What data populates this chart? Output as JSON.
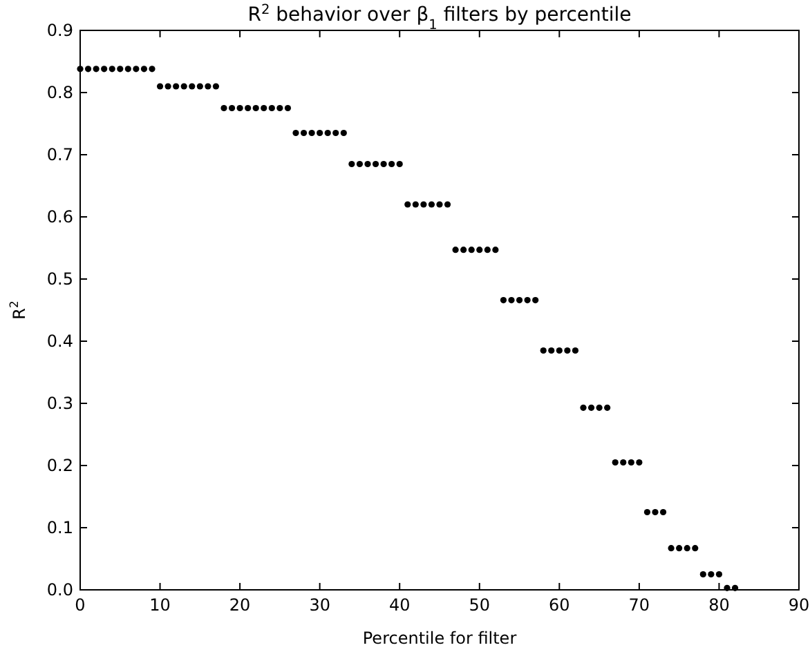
{
  "chart_data": {
    "type": "scatter",
    "title": "R$^{2}$ behavior over β$_{1}$ filters by percentile",
    "xlabel": "Percentile for filter",
    "ylabel": "R$^{2}$",
    "marker": "circle",
    "grid": false,
    "xlim": [
      0,
      90
    ],
    "xticks": [
      0,
      10,
      20,
      30,
      40,
      50,
      60,
      70,
      80,
      90
    ],
    "ylim": [
      0,
      0.9
    ],
    "yticks": [
      {
        "value": 0,
        "label": "0.0"
      },
      0.1,
      0.2,
      0.3,
      0.4,
      0.5,
      0.6,
      0.7,
      0.8,
      0.9
    ],
    "series": [
      {
        "color": "#000000",
        "x": [
          0,
          1,
          2,
          3,
          4,
          5,
          6,
          7,
          8,
          9,
          10,
          11,
          12,
          13,
          14,
          15,
          16,
          17,
          18,
          19,
          20,
          21,
          22,
          23,
          24,
          25,
          26,
          27,
          28,
          29,
          30,
          31,
          32,
          33,
          34,
          35,
          36,
          37,
          38,
          39,
          40,
          41,
          42,
          43,
          44,
          45,
          46,
          47,
          48,
          49,
          50,
          51,
          52,
          53,
          54,
          55,
          56,
          57,
          58,
          59,
          60,
          61,
          62,
          63,
          64,
          65,
          66,
          67,
          68,
          69,
          70,
          71,
          72,
          73,
          74,
          75,
          76,
          77,
          78,
          79,
          80,
          81,
          82
        ],
        "values": [
          0.838,
          0.838,
          0.838,
          0.838,
          0.838,
          0.838,
          0.838,
          0.838,
          0.838,
          0.838,
          0.81,
          0.81,
          0.81,
          0.81,
          0.81,
          0.81,
          0.81,
          0.81,
          0.775,
          0.775,
          0.775,
          0.775,
          0.775,
          0.775,
          0.775,
          0.775,
          0.775,
          0.735,
          0.735,
          0.735,
          0.735,
          0.735,
          0.735,
          0.735,
          0.685,
          0.685,
          0.685,
          0.685,
          0.685,
          0.685,
          0.685,
          0.62,
          0.62,
          0.62,
          0.62,
          0.62,
          0.62,
          0.547,
          0.547,
          0.547,
          0.547,
          0.547,
          0.547,
          0.466,
          0.466,
          0.466,
          0.466,
          0.466,
          0.385,
          0.385,
          0.385,
          0.385,
          0.385,
          0.293,
          0.293,
          0.293,
          0.293,
          0.205,
          0.205,
          0.205,
          0.205,
          0.125,
          0.125,
          0.125,
          0.067,
          0.067,
          0.067,
          0.067,
          0.025,
          0.025,
          0.025,
          0.003,
          0.003
        ]
      }
    ]
  }
}
